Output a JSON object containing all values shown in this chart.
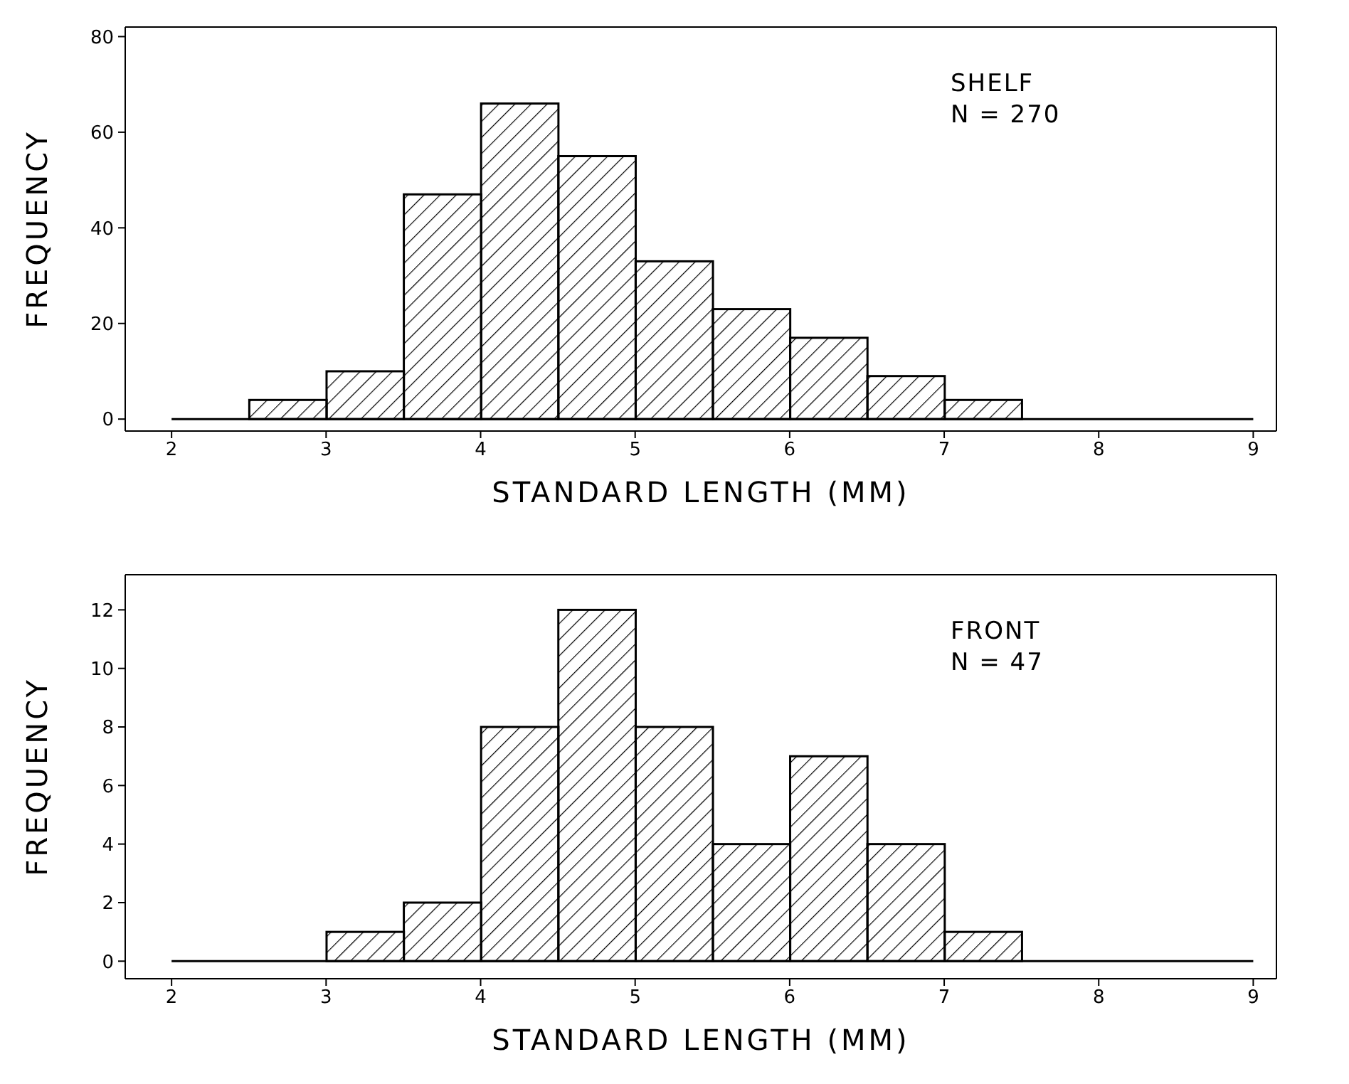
{
  "chart_data": [
    {
      "type": "histogram",
      "xlabel": "STANDARD LENGTH  (MM)",
      "ylabel": "FREQUENCY",
      "annotations": [
        "SHELF",
        "N = 270"
      ],
      "bins": [
        2,
        2.5,
        3,
        3.5,
        4,
        4.5,
        5,
        5.5,
        6,
        6.5,
        7,
        7.5,
        8,
        8.5,
        9
      ],
      "values": [
        0,
        4,
        10,
        47,
        66,
        55,
        33,
        23,
        17,
        9,
        4,
        0,
        0,
        0
      ],
      "color": "#000000",
      "xlim": [
        1.7,
        9.15
      ],
      "ylim": [
        -2.5,
        82
      ],
      "xticks": [
        2,
        3,
        4,
        5,
        6,
        7,
        8,
        9
      ],
      "yticks": [
        0,
        20,
        40,
        60,
        80
      ]
    },
    {
      "type": "histogram",
      "xlabel": "STANDARD LENGTH  (MM)",
      "ylabel": "FREQUENCY",
      "annotations": [
        "FRONT",
        "N = 47"
      ],
      "bins": [
        2,
        2.5,
        3,
        3.5,
        4,
        4.5,
        5,
        5.5,
        6,
        6.5,
        7,
        7.5,
        8,
        8.5,
        9
      ],
      "values": [
        0,
        0,
        1,
        2,
        8,
        12,
        8,
        4,
        7,
        4,
        1,
        0,
        0,
        0
      ],
      "color": "#000000",
      "xlim": [
        1.7,
        9.15
      ],
      "ylim": [
        -0.6,
        13.2
      ],
      "xticks": [
        2,
        3,
        4,
        5,
        6,
        7,
        8,
        9
      ],
      "yticks": [
        0,
        2,
        4,
        6,
        8,
        10,
        12
      ]
    }
  ]
}
